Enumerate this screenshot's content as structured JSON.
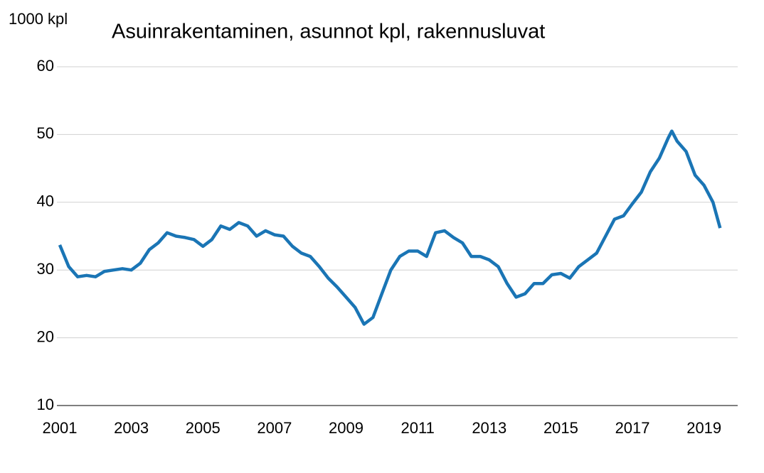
{
  "chart_data": {
    "type": "line",
    "title": "Asuinrakentaminen, asunnot kpl, rakennusluvat",
    "y_label": "1000 kpl",
    "x": [
      2001.0,
      2001.25,
      2001.5,
      2001.75,
      2002.0,
      2002.25,
      2002.5,
      2002.75,
      2003.0,
      2003.25,
      2003.5,
      2003.75,
      2004.0,
      2004.25,
      2004.5,
      2004.75,
      2005.0,
      2005.25,
      2005.5,
      2005.75,
      2006.0,
      2006.25,
      2006.5,
      2006.75,
      2007.0,
      2007.25,
      2007.5,
      2007.75,
      2008.0,
      2008.25,
      2008.5,
      2008.75,
      2009.0,
      2009.25,
      2009.5,
      2009.75,
      2010.0,
      2010.25,
      2010.5,
      2010.75,
      2011.0,
      2011.25,
      2011.5,
      2011.75,
      2012.0,
      2012.25,
      2012.5,
      2012.75,
      2013.0,
      2013.25,
      2013.5,
      2013.75,
      2014.0,
      2014.25,
      2014.5,
      2014.75,
      2015.0,
      2015.25,
      2015.5,
      2015.75,
      2016.0,
      2016.25,
      2016.5,
      2016.75,
      2017.0,
      2017.25,
      2017.5,
      2017.75,
      2018.0,
      2018.1,
      2018.25,
      2018.5,
      2018.75,
      2019.0,
      2019.25,
      2019.45
    ],
    "series": [
      {
        "name": "Rakennusluvat",
        "color": "#1a75b5",
        "values": [
          33.7,
          30.5,
          29.0,
          29.2,
          29.0,
          29.8,
          30.0,
          30.2,
          30.0,
          31.0,
          33.0,
          34.0,
          35.5,
          35.0,
          34.8,
          34.5,
          33.5,
          34.5,
          36.5,
          36.0,
          37.0,
          36.5,
          35.0,
          35.8,
          35.2,
          35.0,
          33.5,
          32.5,
          32.0,
          30.5,
          28.8,
          27.5,
          26.0,
          24.5,
          22.0,
          23.0,
          26.5,
          30.0,
          32.0,
          32.8,
          32.8,
          32.0,
          35.5,
          35.8,
          34.8,
          34.0,
          32.0,
          32.0,
          31.5,
          30.5,
          28.0,
          26.0,
          26.5,
          28.0,
          28.0,
          29.3,
          29.5,
          28.8,
          30.5,
          31.5,
          32.5,
          35.0,
          37.5,
          38.0,
          39.8,
          41.5,
          44.5,
          46.5,
          49.5,
          50.5,
          49.0,
          47.5,
          44.0,
          42.5,
          40.0,
          36.2
        ]
      }
    ],
    "xlim": [
      2001,
      2020
    ],
    "xticks": [
      2001,
      2003,
      2005,
      2007,
      2009,
      2011,
      2013,
      2015,
      2017,
      2019
    ],
    "ylim": [
      10,
      60
    ],
    "yticks": [
      10,
      20,
      30,
      40,
      50,
      60
    ],
    "grid": true
  }
}
